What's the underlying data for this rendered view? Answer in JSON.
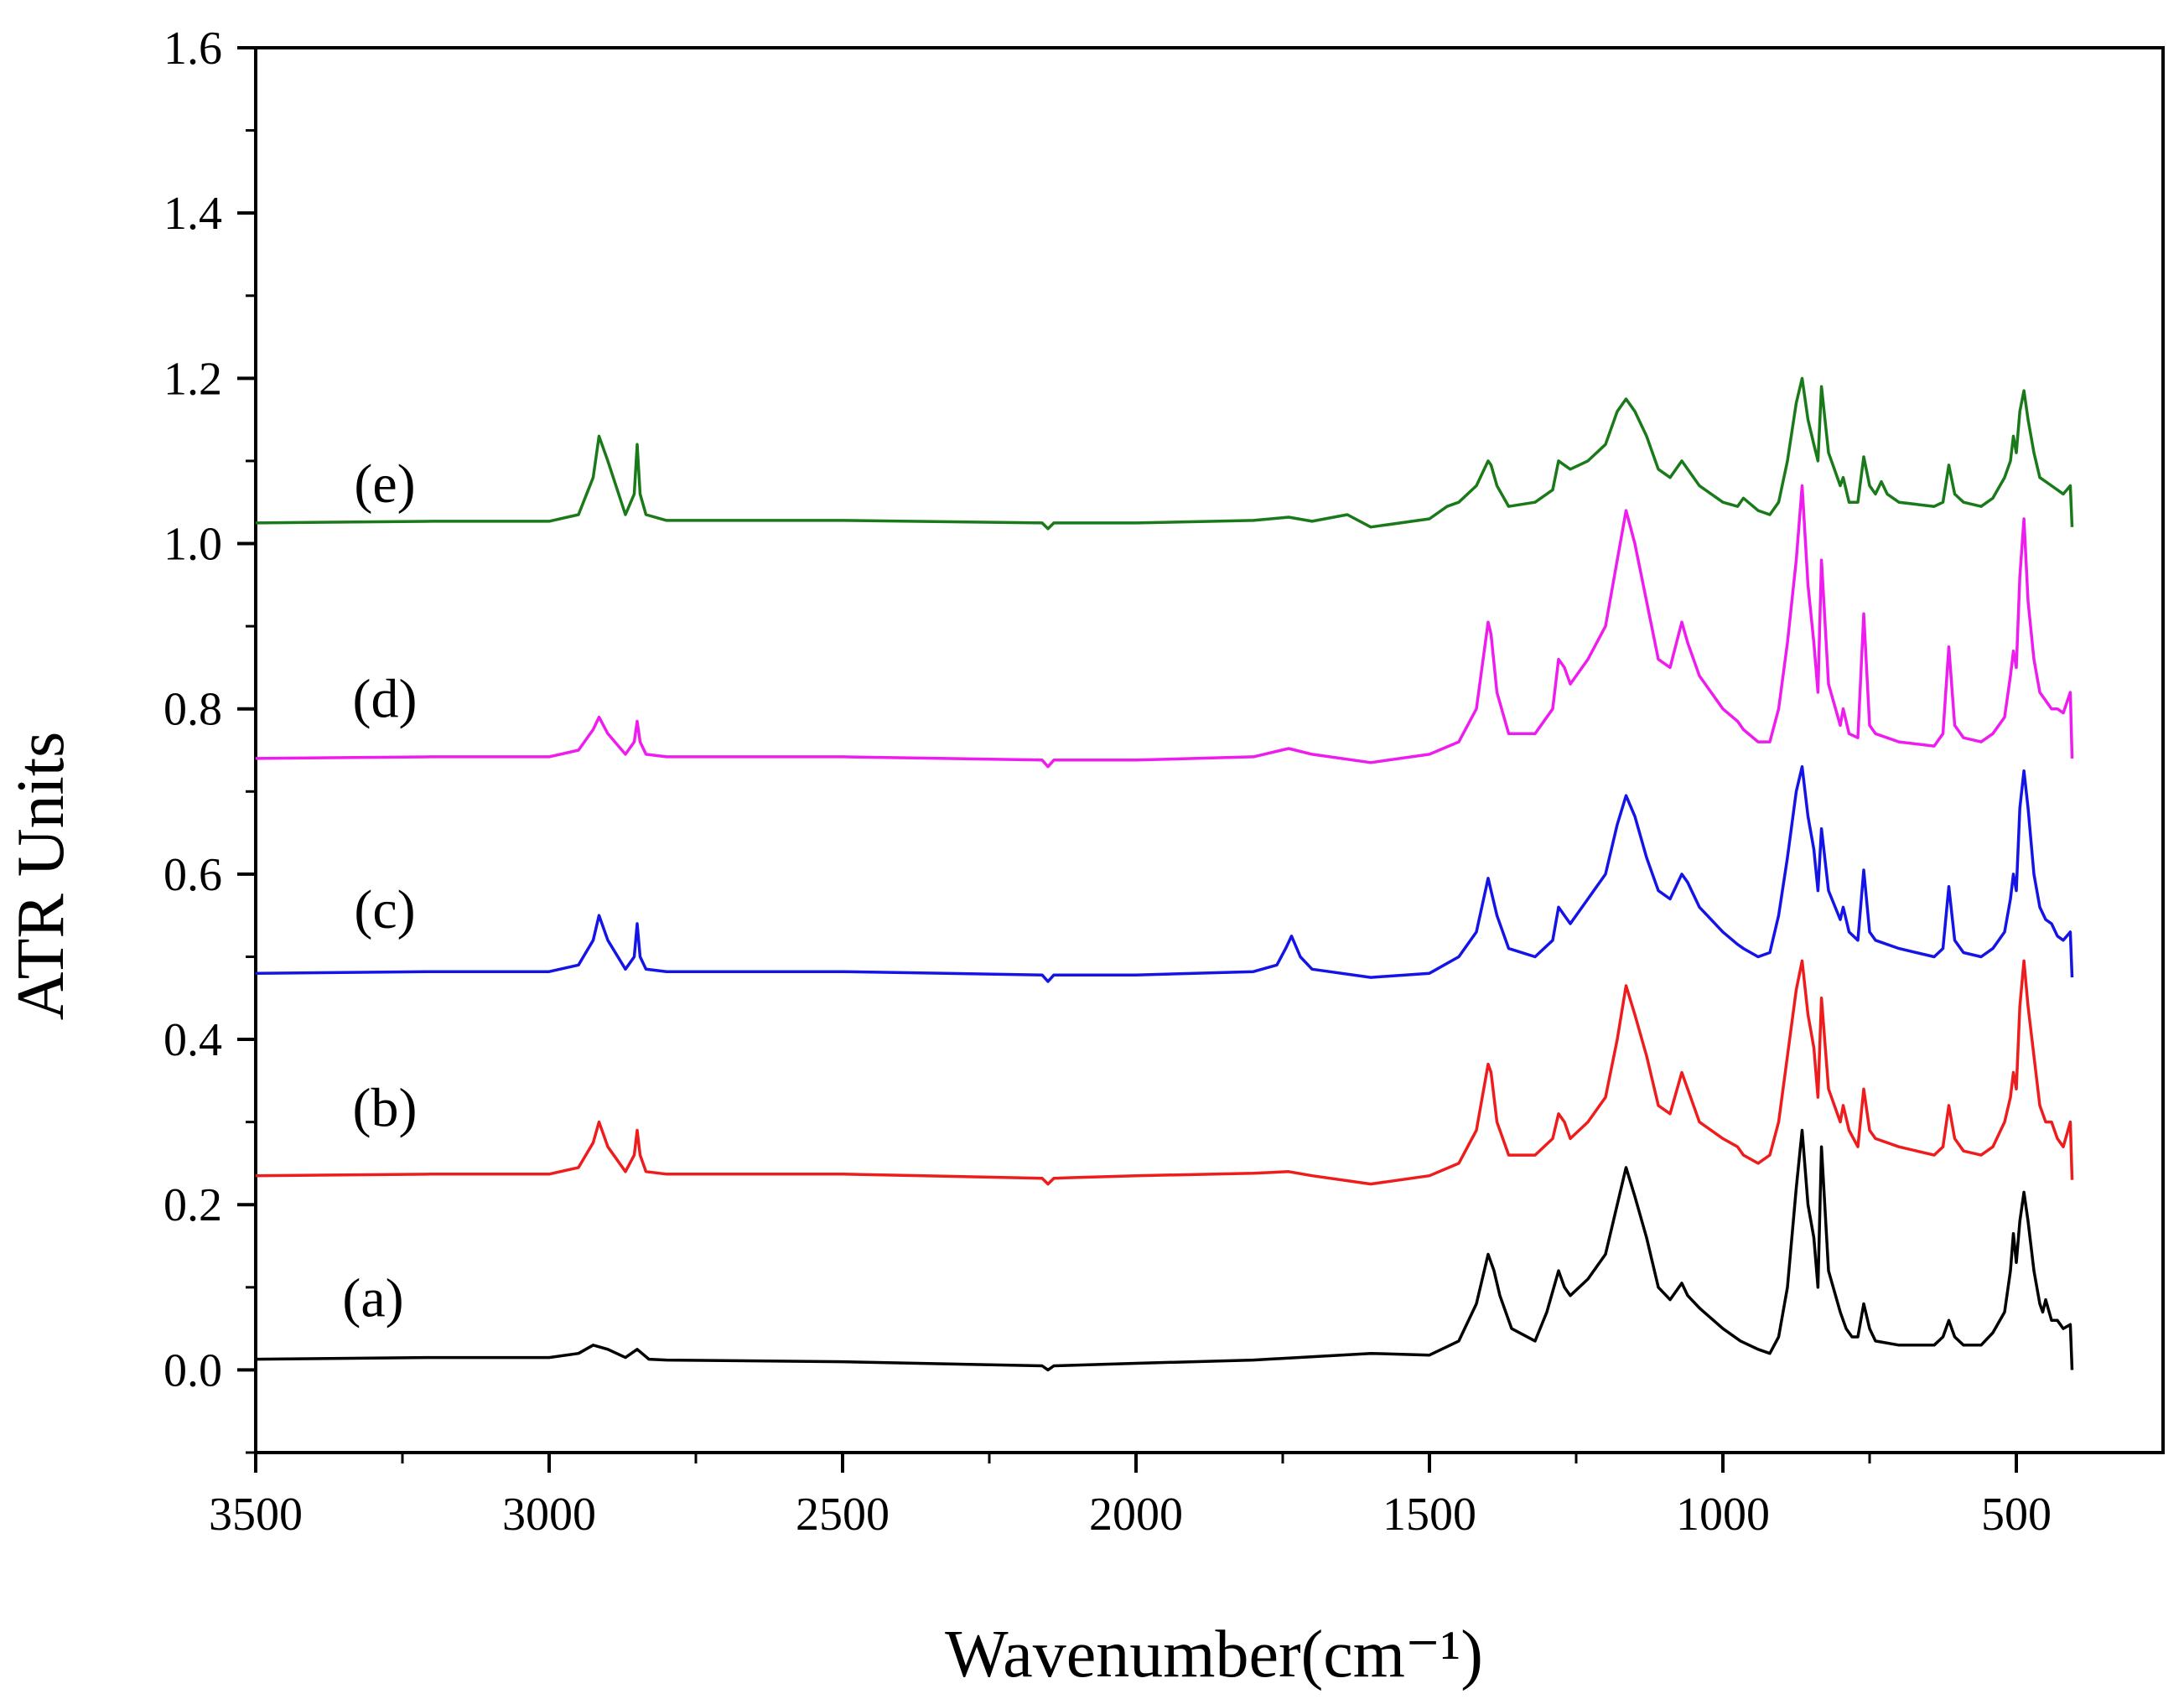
{
  "chart_data": {
    "type": "line",
    "title": "",
    "xlabel": "Wavenumber(cm⁻¹)",
    "ylabel": "ATR Units",
    "xlim": [
      3500,
      250
    ],
    "ylim": [
      -0.1,
      1.6
    ],
    "x_inverted": true,
    "xticks": [
      3500,
      3000,
      2500,
      2000,
      1500,
      1000,
      500
    ],
    "xtick_labels": [
      "3500",
      "3000",
      "2500",
      "2000",
      "1500",
      "1000",
      "500"
    ],
    "yticks": [
      0.0,
      0.2,
      0.4,
      0.6,
      0.8,
      1.0,
      1.2,
      1.4,
      1.6
    ],
    "ytick_labels": [
      "0.0",
      "0.2",
      "0.4",
      "0.6",
      "0.8",
      "1.0",
      "1.2",
      "1.4",
      "1.6"
    ],
    "grid": false,
    "legend": "none",
    "series": [
      {
        "name": "(a)",
        "color": "#000000",
        "label_at": [
          3300,
          0.065
        ],
        "x": [
          3500,
          3200,
          3000,
          2950,
          2925,
          2900,
          2870,
          2850,
          2830,
          2800,
          2500,
          2160,
          2150,
          2140,
          2000,
          1800,
          1600,
          1500,
          1450,
          1420,
          1400,
          1390,
          1380,
          1360,
          1320,
          1300,
          1280,
          1270,
          1260,
          1230,
          1200,
          1180,
          1165,
          1150,
          1130,
          1110,
          1090,
          1070,
          1060,
          1040,
          1000,
          970,
          940,
          920,
          905,
          890,
          875,
          865,
          855,
          845,
          838,
          832,
          820,
          800,
          790,
          780,
          770,
          760,
          750,
          740,
          700,
          640,
          625,
          615,
          605,
          590,
          560,
          540,
          520,
          510,
          505,
          500,
          494,
          487,
          480,
          470,
          460,
          455,
          450,
          440,
          430,
          420,
          408,
          405
        ],
        "values": [
          0.013,
          0.015,
          0.015,
          0.02,
          0.03,
          0.025,
          0.015,
          0.025,
          0.013,
          0.012,
          0.01,
          0.005,
          0.0,
          0.005,
          0.008,
          0.012,
          0.02,
          0.018,
          0.035,
          0.08,
          0.14,
          0.12,
          0.09,
          0.05,
          0.035,
          0.07,
          0.12,
          0.1,
          0.09,
          0.11,
          0.14,
          0.2,
          0.245,
          0.21,
          0.16,
          0.1,
          0.085,
          0.105,
          0.09,
          0.075,
          0.05,
          0.035,
          0.025,
          0.02,
          0.04,
          0.1,
          0.22,
          0.29,
          0.2,
          0.16,
          0.1,
          0.27,
          0.12,
          0.07,
          0.05,
          0.04,
          0.04,
          0.08,
          0.05,
          0.035,
          0.03,
          0.03,
          0.04,
          0.06,
          0.04,
          0.03,
          0.03,
          0.045,
          0.07,
          0.12,
          0.165,
          0.13,
          0.18,
          0.215,
          0.18,
          0.12,
          0.08,
          0.07,
          0.085,
          0.06,
          0.06,
          0.05,
          0.055,
          0.0
        ]
      },
      {
        "name": "(b)",
        "color": "#ee1c1c",
        "label_at": [
          3280,
          0.295
        ],
        "x": [
          3500,
          3200,
          3000,
          2950,
          2925,
          2915,
          2900,
          2870,
          2855,
          2850,
          2845,
          2835,
          2800,
          2500,
          2160,
          2150,
          2140,
          2000,
          1800,
          1740,
          1700,
          1600,
          1500,
          1450,
          1420,
          1400,
          1395,
          1385,
          1365,
          1320,
          1290,
          1280,
          1270,
          1260,
          1230,
          1200,
          1180,
          1165,
          1150,
          1130,
          1110,
          1090,
          1070,
          1060,
          1040,
          1000,
          975,
          965,
          940,
          920,
          905,
          890,
          875,
          865,
          855,
          845,
          838,
          832,
          820,
          800,
          795,
          785,
          770,
          760,
          750,
          740,
          700,
          640,
          625,
          615,
          605,
          590,
          560,
          540,
          520,
          510,
          505,
          500,
          494,
          487,
          480,
          470,
          460,
          450,
          440,
          430,
          420,
          408,
          405
        ],
        "values": [
          0.235,
          0.237,
          0.237,
          0.245,
          0.275,
          0.3,
          0.27,
          0.24,
          0.26,
          0.29,
          0.26,
          0.24,
          0.237,
          0.237,
          0.232,
          0.225,
          0.232,
          0.235,
          0.238,
          0.24,
          0.235,
          0.225,
          0.235,
          0.25,
          0.29,
          0.37,
          0.36,
          0.3,
          0.26,
          0.26,
          0.28,
          0.31,
          0.3,
          0.28,
          0.3,
          0.33,
          0.4,
          0.465,
          0.43,
          0.38,
          0.32,
          0.31,
          0.36,
          0.34,
          0.3,
          0.28,
          0.27,
          0.26,
          0.25,
          0.26,
          0.3,
          0.38,
          0.46,
          0.495,
          0.43,
          0.39,
          0.33,
          0.45,
          0.34,
          0.3,
          0.32,
          0.29,
          0.27,
          0.34,
          0.29,
          0.28,
          0.27,
          0.26,
          0.27,
          0.32,
          0.28,
          0.265,
          0.26,
          0.27,
          0.3,
          0.33,
          0.36,
          0.34,
          0.44,
          0.495,
          0.44,
          0.38,
          0.32,
          0.3,
          0.3,
          0.28,
          0.27,
          0.3,
          0.23
        ]
      },
      {
        "name": "(c)",
        "color": "#1414e6",
        "label_at": [
          3280,
          0.535
        ],
        "x": [
          3500,
          3200,
          3000,
          2950,
          2925,
          2915,
          2900,
          2870,
          2855,
          2850,
          2845,
          2835,
          2800,
          2500,
          2160,
          2150,
          2140,
          2000,
          1800,
          1760,
          1745,
          1735,
          1720,
          1700,
          1600,
          1500,
          1450,
          1420,
          1400,
          1395,
          1385,
          1365,
          1320,
          1290,
          1280,
          1270,
          1260,
          1230,
          1200,
          1180,
          1165,
          1150,
          1130,
          1110,
          1090,
          1070,
          1060,
          1040,
          1000,
          975,
          965,
          940,
          920,
          905,
          890,
          875,
          865,
          855,
          845,
          838,
          832,
          820,
          800,
          795,
          785,
          770,
          760,
          750,
          740,
          700,
          640,
          625,
          615,
          605,
          590,
          560,
          540,
          520,
          510,
          505,
          500,
          494,
          487,
          480,
          470,
          460,
          450,
          440,
          430,
          420,
          408,
          405
        ],
        "values": [
          0.48,
          0.482,
          0.482,
          0.49,
          0.52,
          0.55,
          0.52,
          0.485,
          0.5,
          0.54,
          0.5,
          0.485,
          0.482,
          0.482,
          0.478,
          0.47,
          0.478,
          0.478,
          0.482,
          0.49,
          0.51,
          0.525,
          0.5,
          0.485,
          0.475,
          0.48,
          0.5,
          0.53,
          0.595,
          0.58,
          0.55,
          0.51,
          0.5,
          0.52,
          0.56,
          0.55,
          0.54,
          0.57,
          0.6,
          0.66,
          0.695,
          0.67,
          0.62,
          0.58,
          0.57,
          0.6,
          0.59,
          0.56,
          0.53,
          0.515,
          0.51,
          0.5,
          0.505,
          0.55,
          0.62,
          0.7,
          0.73,
          0.67,
          0.63,
          0.58,
          0.655,
          0.58,
          0.545,
          0.56,
          0.53,
          0.52,
          0.605,
          0.53,
          0.52,
          0.51,
          0.5,
          0.51,
          0.585,
          0.52,
          0.505,
          0.5,
          0.51,
          0.53,
          0.57,
          0.6,
          0.58,
          0.68,
          0.725,
          0.68,
          0.6,
          0.56,
          0.545,
          0.54,
          0.525,
          0.52,
          0.53,
          0.475
        ]
      },
      {
        "name": "(d)",
        "color": "#ee1cee",
        "label_at": [
          3280,
          0.79
        ],
        "x": [
          3500,
          3200,
          3000,
          2950,
          2925,
          2915,
          2900,
          2870,
          2855,
          2850,
          2845,
          2835,
          2800,
          2500,
          2160,
          2150,
          2140,
          2000,
          1800,
          1740,
          1700,
          1600,
          1500,
          1450,
          1420,
          1400,
          1395,
          1385,
          1365,
          1320,
          1290,
          1280,
          1270,
          1260,
          1230,
          1200,
          1180,
          1165,
          1150,
          1130,
          1110,
          1090,
          1070,
          1060,
          1040,
          1000,
          975,
          965,
          940,
          920,
          905,
          890,
          875,
          865,
          855,
          845,
          838,
          832,
          820,
          800,
          795,
          785,
          770,
          760,
          750,
          740,
          700,
          640,
          625,
          615,
          605,
          590,
          560,
          540,
          520,
          510,
          505,
          500,
          494,
          487,
          480,
          470,
          460,
          450,
          440,
          430,
          420,
          408,
          405
        ],
        "values": [
          0.74,
          0.742,
          0.742,
          0.75,
          0.775,
          0.79,
          0.77,
          0.745,
          0.76,
          0.785,
          0.76,
          0.745,
          0.742,
          0.742,
          0.738,
          0.73,
          0.738,
          0.738,
          0.742,
          0.752,
          0.745,
          0.735,
          0.745,
          0.76,
          0.8,
          0.905,
          0.89,
          0.82,
          0.77,
          0.77,
          0.8,
          0.86,
          0.85,
          0.83,
          0.86,
          0.9,
          0.98,
          1.04,
          1.0,
          0.93,
          0.86,
          0.85,
          0.905,
          0.88,
          0.84,
          0.8,
          0.785,
          0.775,
          0.76,
          0.76,
          0.8,
          0.88,
          0.98,
          1.07,
          0.95,
          0.88,
          0.82,
          0.98,
          0.83,
          0.78,
          0.8,
          0.77,
          0.765,
          0.915,
          0.78,
          0.77,
          0.76,
          0.755,
          0.77,
          0.875,
          0.78,
          0.765,
          0.76,
          0.77,
          0.79,
          0.84,
          0.87,
          0.85,
          0.96,
          1.03,
          0.93,
          0.86,
          0.82,
          0.81,
          0.8,
          0.8,
          0.795,
          0.82,
          0.74
        ]
      },
      {
        "name": "(e)",
        "color": "#1a7a1a",
        "label_at": [
          3280,
          1.05
        ],
        "x": [
          3500,
          3200,
          3000,
          2950,
          2925,
          2915,
          2900,
          2870,
          2855,
          2850,
          2845,
          2835,
          2800,
          2500,
          2160,
          2150,
          2140,
          2000,
          1800,
          1740,
          1700,
          1640,
          1600,
          1500,
          1470,
          1450,
          1420,
          1400,
          1395,
          1385,
          1365,
          1320,
          1290,
          1280,
          1270,
          1260,
          1230,
          1200,
          1180,
          1165,
          1150,
          1130,
          1110,
          1090,
          1070,
          1060,
          1040,
          1000,
          975,
          965,
          940,
          920,
          905,
          890,
          875,
          865,
          855,
          845,
          838,
          832,
          820,
          800,
          795,
          785,
          770,
          760,
          750,
          740,
          730,
          720,
          700,
          640,
          625,
          615,
          605,
          590,
          560,
          540,
          520,
          510,
          505,
          500,
          494,
          487,
          480,
          470,
          460,
          450,
          440,
          430,
          420,
          408,
          405
        ],
        "values": [
          1.025,
          1.027,
          1.027,
          1.035,
          1.08,
          1.13,
          1.1,
          1.035,
          1.06,
          1.12,
          1.06,
          1.035,
          1.028,
          1.028,
          1.025,
          1.018,
          1.025,
          1.025,
          1.028,
          1.032,
          1.027,
          1.035,
          1.02,
          1.03,
          1.045,
          1.05,
          1.07,
          1.1,
          1.095,
          1.07,
          1.045,
          1.05,
          1.065,
          1.1,
          1.095,
          1.09,
          1.1,
          1.12,
          1.16,
          1.175,
          1.16,
          1.13,
          1.09,
          1.08,
          1.1,
          1.09,
          1.07,
          1.05,
          1.045,
          1.055,
          1.04,
          1.035,
          1.05,
          1.1,
          1.17,
          1.2,
          1.15,
          1.12,
          1.1,
          1.19,
          1.11,
          1.07,
          1.08,
          1.05,
          1.05,
          1.105,
          1.07,
          1.06,
          1.075,
          1.06,
          1.05,
          1.045,
          1.05,
          1.095,
          1.06,
          1.05,
          1.045,
          1.055,
          1.08,
          1.1,
          1.13,
          1.11,
          1.16,
          1.185,
          1.15,
          1.11,
          1.08,
          1.075,
          1.07,
          1.065,
          1.06,
          1.07,
          1.02
        ]
      }
    ]
  }
}
